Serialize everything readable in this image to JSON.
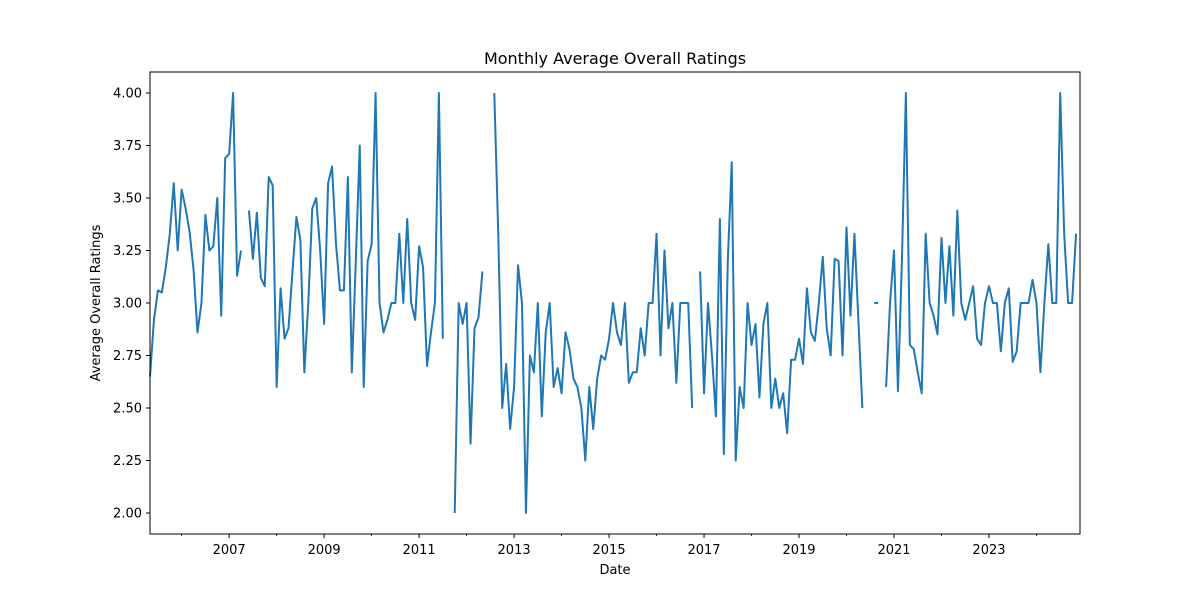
{
  "chart_data": {
    "type": "line",
    "title": "Monthly Average Overall Ratings",
    "xlabel": "Date",
    "ylabel": "Average Overall Ratings",
    "x_ticks": [
      "2007",
      "2009",
      "2011",
      "2013",
      "2015",
      "2017",
      "2019",
      "2021",
      "2023"
    ],
    "y_ticks": [
      "2.00",
      "2.25",
      "2.50",
      "2.75",
      "3.00",
      "3.25",
      "3.50",
      "3.75",
      "4.00"
    ],
    "xlim": [
      "2005-05",
      "2024-12"
    ],
    "ylim": [
      1.9,
      4.1
    ],
    "grid": false,
    "legend": "none",
    "series_color": "#1f77b4",
    "series": [
      {
        "points": [
          [
            "2005-05",
            2.65
          ],
          [
            "2005-06",
            2.92
          ],
          [
            "2005-07",
            3.06
          ],
          [
            "2005-08",
            3.05
          ],
          [
            "2005-09",
            3.17
          ],
          [
            "2005-10",
            3.33
          ],
          [
            "2005-11",
            3.57
          ],
          [
            "2005-12",
            3.25
          ],
          [
            "2006-01",
            3.54
          ],
          [
            "2006-02",
            3.45
          ],
          [
            "2006-03",
            3.34
          ],
          [
            "2006-04",
            3.16
          ],
          [
            "2006-05",
            2.86
          ],
          [
            "2006-06",
            3.0
          ],
          [
            "2006-07",
            3.42
          ],
          [
            "2006-08",
            3.25
          ],
          [
            "2006-09",
            3.27
          ],
          [
            "2006-10",
            3.5
          ],
          [
            "2006-11",
            2.94
          ],
          [
            "2006-12",
            3.69
          ],
          [
            "2007-01",
            3.71
          ],
          [
            "2007-02",
            4.0
          ],
          [
            "2007-03",
            3.13
          ],
          [
            "2007-04",
            3.25
          ],
          [
            "2007-05",
            null
          ],
          [
            "2007-06",
            3.44
          ],
          [
            "2007-07",
            3.21
          ],
          [
            "2007-08",
            3.43
          ],
          [
            "2007-09",
            3.12
          ],
          [
            "2007-10",
            3.08
          ],
          [
            "2007-11",
            3.6
          ],
          [
            "2007-12",
            3.56
          ],
          [
            "2008-01",
            2.6
          ],
          [
            "2008-02",
            3.07
          ],
          [
            "2008-03",
            2.83
          ],
          [
            "2008-04",
            2.88
          ],
          [
            "2008-05",
            3.15
          ],
          [
            "2008-06",
            3.41
          ],
          [
            "2008-07",
            3.3
          ],
          [
            "2008-08",
            2.67
          ],
          [
            "2008-09",
            3.0
          ],
          [
            "2008-10",
            3.45
          ],
          [
            "2008-11",
            3.5
          ],
          [
            "2008-12",
            3.25
          ],
          [
            "2009-01",
            2.9
          ],
          [
            "2009-02",
            3.57
          ],
          [
            "2009-03",
            3.65
          ],
          [
            "2009-04",
            3.28
          ],
          [
            "2009-05",
            3.06
          ],
          [
            "2009-06",
            3.06
          ],
          [
            "2009-07",
            3.6
          ],
          [
            "2009-08",
            2.67
          ],
          [
            "2009-09",
            3.2
          ],
          [
            "2009-10",
            3.75
          ],
          [
            "2009-11",
            2.6
          ],
          [
            "2009-12",
            3.2
          ],
          [
            "2010-01",
            3.28
          ],
          [
            "2010-02",
            4.0
          ],
          [
            "2010-03",
            3.0
          ],
          [
            "2010-04",
            2.86
          ],
          [
            "2010-05",
            2.92
          ],
          [
            "2010-06",
            3.0
          ],
          [
            "2010-07",
            3.0
          ],
          [
            "2010-08",
            3.33
          ],
          [
            "2010-09",
            3.0
          ],
          [
            "2010-10",
            3.4
          ],
          [
            "2010-11",
            3.0
          ],
          [
            "2010-12",
            2.92
          ],
          [
            "2011-01",
            3.27
          ],
          [
            "2011-02",
            3.17
          ],
          [
            "2011-03",
            2.7
          ],
          [
            "2011-04",
            2.86
          ],
          [
            "2011-05",
            3.0
          ],
          [
            "2011-06",
            4.0
          ],
          [
            "2011-07",
            2.83
          ],
          [
            "2011-08",
            null
          ],
          [
            "2011-09",
            null
          ],
          [
            "2011-10",
            2.0
          ],
          [
            "2011-11",
            3.0
          ],
          [
            "2011-12",
            2.9
          ],
          [
            "2012-01",
            3.0
          ],
          [
            "2012-02",
            2.33
          ],
          [
            "2012-03",
            2.88
          ],
          [
            "2012-04",
            2.93
          ],
          [
            "2012-05",
            3.15
          ],
          [
            "2012-06",
            null
          ],
          [
            "2012-07",
            null
          ],
          [
            "2012-08",
            4.0
          ],
          [
            "2012-09",
            3.33
          ],
          [
            "2012-10",
            2.5
          ],
          [
            "2012-11",
            2.71
          ],
          [
            "2012-12",
            2.4
          ],
          [
            "2013-01",
            2.6
          ],
          [
            "2013-02",
            3.18
          ],
          [
            "2013-03",
            3.0
          ],
          [
            "2013-04",
            2.0
          ],
          [
            "2013-05",
            2.75
          ],
          [
            "2013-06",
            2.67
          ],
          [
            "2013-07",
            3.0
          ],
          [
            "2013-08",
            2.46
          ],
          [
            "2013-09",
            2.86
          ],
          [
            "2013-10",
            3.0
          ],
          [
            "2013-11",
            2.6
          ],
          [
            "2013-12",
            2.69
          ],
          [
            "2014-01",
            2.57
          ],
          [
            "2014-02",
            2.86
          ],
          [
            "2014-03",
            2.78
          ],
          [
            "2014-04",
            2.64
          ],
          [
            "2014-05",
            2.6
          ],
          [
            "2014-06",
            2.5
          ],
          [
            "2014-07",
            2.25
          ],
          [
            "2014-08",
            2.6
          ],
          [
            "2014-09",
            2.4
          ],
          [
            "2014-10",
            2.64
          ],
          [
            "2014-11",
            2.75
          ],
          [
            "2014-12",
            2.73
          ],
          [
            "2015-01",
            2.83
          ],
          [
            "2015-02",
            3.0
          ],
          [
            "2015-03",
            2.86
          ],
          [
            "2015-04",
            2.8
          ],
          [
            "2015-05",
            3.0
          ],
          [
            "2015-06",
            2.62
          ],
          [
            "2015-07",
            2.67
          ],
          [
            "2015-08",
            2.67
          ],
          [
            "2015-09",
            2.88
          ],
          [
            "2015-10",
            2.75
          ],
          [
            "2015-11",
            3.0
          ],
          [
            "2015-12",
            3.0
          ],
          [
            "2016-01",
            3.33
          ],
          [
            "2016-02",
            2.75
          ],
          [
            "2016-03",
            3.25
          ],
          [
            "2016-04",
            2.88
          ],
          [
            "2016-05",
            3.0
          ],
          [
            "2016-06",
            2.62
          ],
          [
            "2016-07",
            3.0
          ],
          [
            "2016-08",
            3.0
          ],
          [
            "2016-09",
            3.0
          ],
          [
            "2016-10",
            2.5
          ],
          [
            "2016-11",
            null
          ],
          [
            "2016-12",
            3.15
          ],
          [
            "2017-01",
            2.57
          ],
          [
            "2017-02",
            3.0
          ],
          [
            "2017-03",
            2.75
          ],
          [
            "2017-04",
            2.46
          ],
          [
            "2017-05",
            3.4
          ],
          [
            "2017-06",
            2.28
          ],
          [
            "2017-07",
            3.2
          ],
          [
            "2017-08",
            3.67
          ],
          [
            "2017-09",
            2.25
          ],
          [
            "2017-10",
            2.6
          ],
          [
            "2017-11",
            2.5
          ],
          [
            "2017-12",
            3.0
          ],
          [
            "2018-01",
            2.8
          ],
          [
            "2018-02",
            2.9
          ],
          [
            "2018-03",
            2.55
          ],
          [
            "2018-04",
            2.9
          ],
          [
            "2018-05",
            3.0
          ],
          [
            "2018-06",
            2.5
          ],
          [
            "2018-07",
            2.64
          ],
          [
            "2018-08",
            2.5
          ],
          [
            "2018-09",
            2.57
          ],
          [
            "2018-10",
            2.38
          ],
          [
            "2018-11",
            2.73
          ],
          [
            "2018-12",
            2.73
          ],
          [
            "2019-01",
            2.83
          ],
          [
            "2019-02",
            2.71
          ],
          [
            "2019-03",
            3.07
          ],
          [
            "2019-04",
            2.86
          ],
          [
            "2019-05",
            2.82
          ],
          [
            "2019-06",
            3.0
          ],
          [
            "2019-07",
            3.22
          ],
          [
            "2019-08",
            2.88
          ],
          [
            "2019-09",
            2.75
          ],
          [
            "2019-10",
            3.21
          ],
          [
            "2019-11",
            3.2
          ],
          [
            "2019-12",
            2.75
          ],
          [
            "2020-01",
            3.36
          ],
          [
            "2020-02",
            2.94
          ],
          [
            "2020-03",
            3.33
          ],
          [
            "2020-04",
            2.92
          ],
          [
            "2020-05",
            2.5
          ],
          [
            "2020-06",
            null
          ],
          [
            "2020-07",
            null
          ],
          [
            "2020-08",
            3.0
          ],
          [
            "2020-09",
            3.0
          ],
          [
            "2020-10",
            null
          ],
          [
            "2020-11",
            2.6
          ],
          [
            "2020-12",
            3.0
          ],
          [
            "2021-01",
            3.25
          ],
          [
            "2021-02",
            2.58
          ],
          [
            "2021-03",
            3.2
          ],
          [
            "2021-04",
            4.0
          ],
          [
            "2021-05",
            2.8
          ],
          [
            "2021-06",
            2.78
          ],
          [
            "2021-07",
            2.67
          ],
          [
            "2021-08",
            2.57
          ],
          [
            "2021-09",
            3.33
          ],
          [
            "2021-10",
            3.0
          ],
          [
            "2021-11",
            2.94
          ],
          [
            "2021-12",
            2.85
          ],
          [
            "2022-01",
            3.31
          ],
          [
            "2022-02",
            3.0
          ],
          [
            "2022-03",
            3.27
          ],
          [
            "2022-04",
            2.94
          ],
          [
            "2022-05",
            3.44
          ],
          [
            "2022-06",
            3.0
          ],
          [
            "2022-07",
            2.92
          ],
          [
            "2022-08",
            3.0
          ],
          [
            "2022-09",
            3.08
          ],
          [
            "2022-10",
            2.83
          ],
          [
            "2022-11",
            2.8
          ],
          [
            "2022-12",
            3.0
          ],
          [
            "2023-01",
            3.08
          ],
          [
            "2023-02",
            3.0
          ],
          [
            "2023-03",
            3.0
          ],
          [
            "2023-04",
            2.77
          ],
          [
            "2023-05",
            3.0
          ],
          [
            "2023-06",
            3.07
          ],
          [
            "2023-07",
            2.72
          ],
          [
            "2023-08",
            2.77
          ],
          [
            "2023-09",
            3.0
          ],
          [
            "2023-10",
            3.0
          ],
          [
            "2023-11",
            3.0
          ],
          [
            "2023-12",
            3.11
          ],
          [
            "2024-01",
            3.0
          ],
          [
            "2024-02",
            2.67
          ],
          [
            "2024-03",
            3.0
          ],
          [
            "2024-04",
            3.28
          ],
          [
            "2024-05",
            3.0
          ],
          [
            "2024-06",
            3.0
          ],
          [
            "2024-07",
            4.0
          ],
          [
            "2024-08",
            3.33
          ],
          [
            "2024-09",
            3.0
          ],
          [
            "2024-10",
            3.0
          ],
          [
            "2024-11",
            3.33
          ]
        ]
      }
    ]
  }
}
